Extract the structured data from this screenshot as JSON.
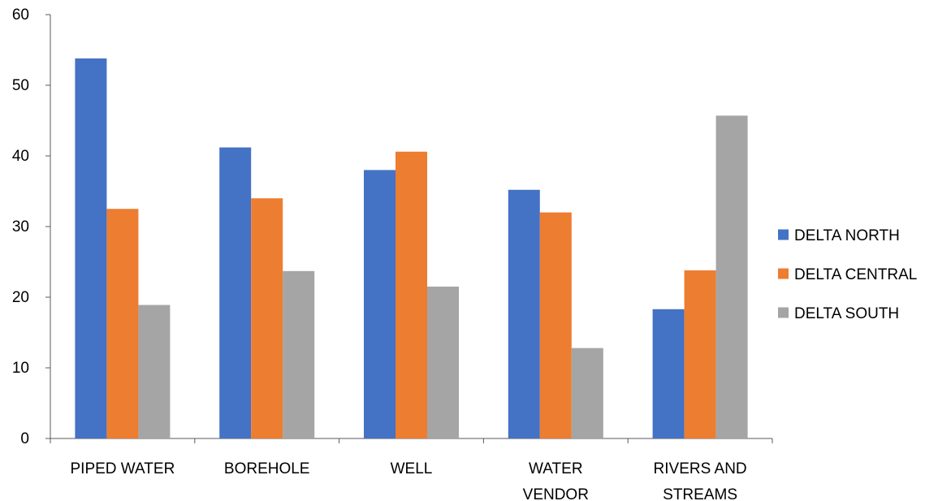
{
  "chart_data": {
    "type": "bar",
    "title": "",
    "xlabel": "",
    "ylabel": "",
    "ylim": [
      0,
      60
    ],
    "yticks": [
      0,
      10,
      20,
      30,
      40,
      50,
      60
    ],
    "grid": false,
    "legend_position": "right",
    "categories": [
      [
        "PIPED WATER"
      ],
      [
        "BOREHOLE"
      ],
      [
        "WELL"
      ],
      [
        "WATER",
        "VENDOR"
      ],
      [
        "RIVERS AND",
        "STREAMS"
      ]
    ],
    "series": [
      {
        "name": "DELTA NORTH",
        "color": "#4472C4",
        "values": [
          53.8,
          41.2,
          38.0,
          35.2,
          18.3
        ]
      },
      {
        "name": "DELTA CENTRAL",
        "color": "#ED7D31",
        "values": [
          32.5,
          34.0,
          40.6,
          32.0,
          23.8
        ]
      },
      {
        "name": "DELTA SOUTH",
        "color": "#A5A5A5",
        "values": [
          18.9,
          23.7,
          21.5,
          12.8,
          45.7
        ]
      }
    ]
  }
}
